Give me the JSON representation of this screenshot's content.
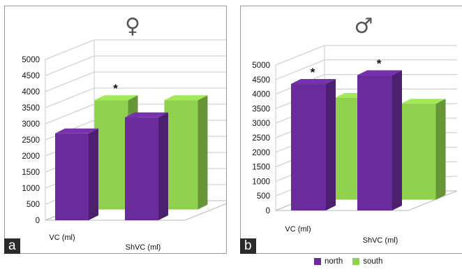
{
  "chart_data": [
    {
      "type": "bar",
      "panel_label": "a",
      "symbol": "♀",
      "categories": [
        "VC (ml)",
        "ShVC (ml)"
      ],
      "series": [
        {
          "name": "north",
          "values": [
            2700,
            3200
          ],
          "color": "#6a2c9a"
        },
        {
          "name": "south",
          "values": [
            3400,
            3400
          ],
          "color": "#8fd14f"
        }
      ],
      "significance": [
        {
          "category": 0,
          "series": 1,
          "mark": "*"
        }
      ],
      "yticks": [
        0,
        500,
        1000,
        1500,
        2000,
        2500,
        3000,
        3500,
        4000,
        4500,
        5000
      ],
      "ylim": [
        0,
        5000
      ],
      "grid": true
    },
    {
      "type": "bar",
      "panel_label": "b",
      "symbol": "♂",
      "categories": [
        "VC (ml)",
        "ShVC (ml)"
      ],
      "series": [
        {
          "name": "north",
          "values": [
            4350,
            4650
          ],
          "color": "#6a2c9a"
        },
        {
          "name": "south",
          "values": [
            3500,
            3300
          ],
          "color": "#8fd14f"
        }
      ],
      "significance": [
        {
          "category": 0,
          "series": 0,
          "mark": "*"
        },
        {
          "category": 1,
          "series": 0,
          "mark": "*"
        }
      ],
      "yticks": [
        0,
        500,
        1000,
        1500,
        2000,
        2500,
        3000,
        3500,
        4000,
        4500,
        5000
      ],
      "ylim": [
        0,
        5000
      ],
      "grid": true
    }
  ],
  "legend": {
    "placement": "bottom-right",
    "items": [
      {
        "label": "north",
        "color": "#6a2c9a"
      },
      {
        "label": "south",
        "color": "#8fd14f"
      }
    ]
  }
}
